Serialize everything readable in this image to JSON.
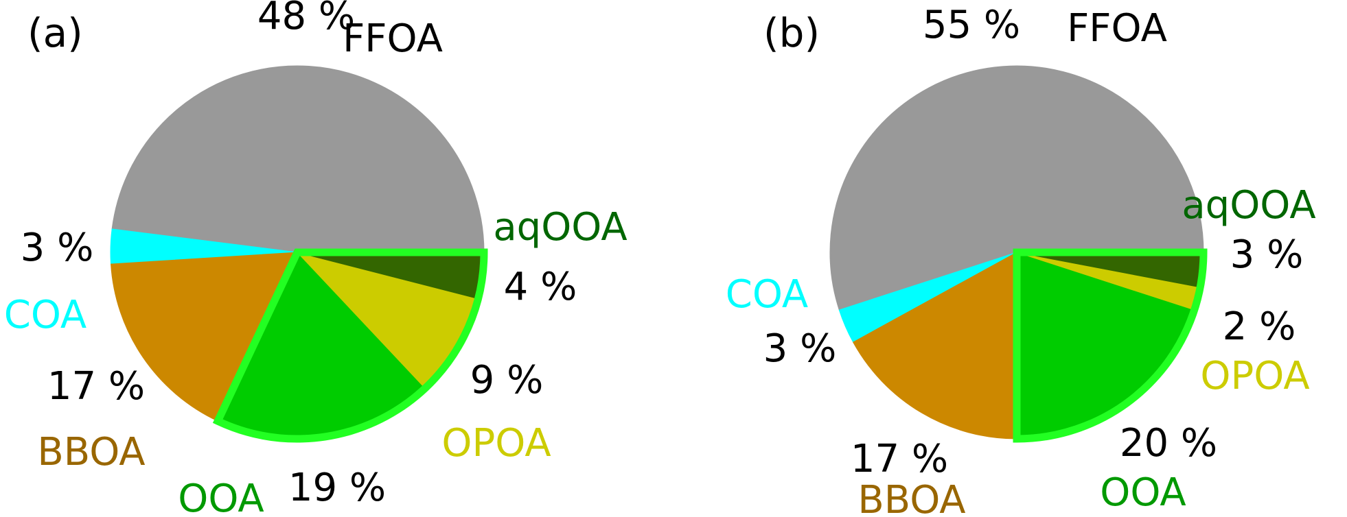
{
  "chart_data": [
    {
      "type": "pie",
      "panel_label": "(a)",
      "slices": [
        {
          "name": "FFOA",
          "value": 48,
          "label": "48 %",
          "color": "#999999",
          "name_color": "#000000"
        },
        {
          "name": "COA",
          "value": 3,
          "label": "3 %",
          "color": "#00ffff",
          "name_color": "#00ffff"
        },
        {
          "name": "BBOA",
          "value": 17,
          "label": "17 %",
          "color": "#cc8800",
          "name_color": "#996600"
        },
        {
          "name": "OOA",
          "value": 19,
          "label": "19 %",
          "color": "#00cc00",
          "name_color": "#009900"
        },
        {
          "name": "OPOA",
          "value": 9,
          "label": "9 %",
          "color": "#cccc00",
          "name_color": "#cccc00"
        },
        {
          "name": "aqOOA",
          "value": 4,
          "label": "4 %",
          "color": "#336600",
          "name_color": "#006600"
        }
      ],
      "highlight": {
        "slices": [
          "OOA",
          "OPOA",
          "aqOOA"
        ],
        "outline_color": "#22ff22"
      }
    },
    {
      "type": "pie",
      "panel_label": "(b)",
      "slices": [
        {
          "name": "FFOA",
          "value": 55,
          "label": "55 %",
          "color": "#999999",
          "name_color": "#000000"
        },
        {
          "name": "COA",
          "value": 3,
          "label": "3 %",
          "color": "#00ffff",
          "name_color": "#00ffff"
        },
        {
          "name": "BBOA",
          "value": 17,
          "label": "17 %",
          "color": "#cc8800",
          "name_color": "#996600"
        },
        {
          "name": "OOA",
          "value": 20,
          "label": "20 %",
          "color": "#00cc00",
          "name_color": "#009900"
        },
        {
          "name": "OPOA",
          "value": 2,
          "label": "2 %",
          "color": "#cccc00",
          "name_color": "#cccc00"
        },
        {
          "name": "aqOOA",
          "value": 3,
          "label": "3 %",
          "color": "#336600",
          "name_color": "#006600"
        }
      ],
      "highlight": {
        "slices": [
          "OOA",
          "OPOA",
          "aqOOA"
        ],
        "outline_color": "#22ff22"
      }
    }
  ]
}
